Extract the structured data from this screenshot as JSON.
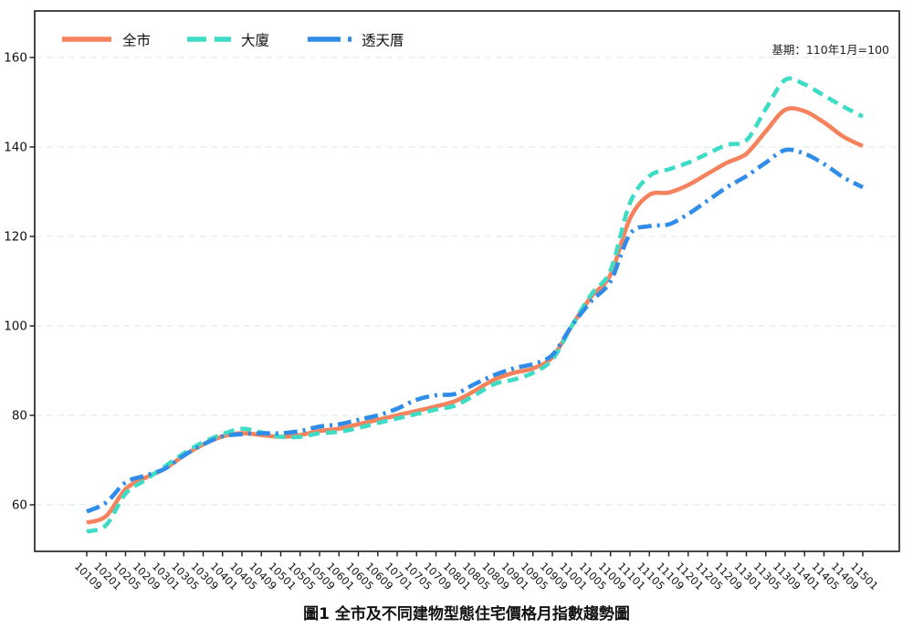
{
  "chart_data": {
    "type": "line",
    "title": "圖1 全市及不同建物型態住宅價格月指數趨勢圖",
    "note": "基期：110年1月=100",
    "xlabel": "",
    "ylabel": "",
    "yticks": [
      60,
      80,
      100,
      120,
      140,
      160
    ],
    "ylim": [
      49,
      171
    ],
    "grid": "horizontal-dashed",
    "legend_position": "top-left-inside",
    "categories": [
      "10109",
      "10201",
      "10205",
      "10209",
      "10301",
      "10305",
      "10309",
      "10401",
      "10405",
      "10409",
      "10501",
      "10505",
      "10509",
      "10601",
      "10605",
      "10609",
      "10701",
      "10705",
      "10709",
      "10801",
      "10805",
      "10809",
      "10901",
      "10905",
      "10909",
      "11001",
      "11005",
      "11009",
      "11101",
      "11105",
      "11109",
      "11201",
      "11205",
      "11209",
      "11301",
      "11305",
      "11309",
      "11401",
      "11405",
      "11409",
      "11501"
    ],
    "series": [
      {
        "name": "全市",
        "color": "#F5825C",
        "style": "solid",
        "values": [
          56,
          57.5,
          63.5,
          66,
          68,
          71,
          73.5,
          75.3,
          76,
          75.6,
          75.2,
          75.6,
          76.5,
          77,
          78,
          79,
          80,
          81,
          82,
          83.2,
          85.5,
          88,
          89.5,
          90.5,
          93,
          100,
          106.5,
          111.5,
          124,
          129.3,
          129.8,
          131.5,
          134,
          136.5,
          138.5,
          143.5,
          148.3,
          148,
          145.5,
          142.3,
          140.2
        ]
      },
      {
        "name": "大廈",
        "color": "#3EDCC5",
        "style": "dashed",
        "values": [
          54,
          55.5,
          62.5,
          65.5,
          68.5,
          71.5,
          74,
          75.8,
          77,
          76.2,
          75.2,
          75.2,
          76,
          76.3,
          77.2,
          78.3,
          79.3,
          80.3,
          81.3,
          82.2,
          84.5,
          87,
          88,
          89.5,
          92.5,
          100,
          107,
          112.5,
          127.5,
          133.5,
          135,
          136.5,
          138.5,
          140.5,
          141.5,
          148.5,
          155,
          154,
          151.5,
          149,
          146.8
        ]
      },
      {
        "name": "透天厝",
        "color": "#2F8CE8",
        "style": "dash-dot",
        "values": [
          58.5,
          60.5,
          65,
          66.5,
          68,
          71,
          73.5,
          75.3,
          75.8,
          76,
          76,
          76.5,
          77.5,
          78,
          79,
          80,
          81.5,
          83.5,
          84.5,
          84.8,
          87,
          89,
          90.5,
          91.5,
          93.5,
          100,
          105.5,
          110,
          120.5,
          122.3,
          122.7,
          125,
          128,
          131,
          133.5,
          136.5,
          139.3,
          138.5,
          136.2,
          133.2,
          131
        ]
      }
    ],
    "frame_color": "#1a1a1a",
    "grid_color": "#dbe7e5",
    "text_color": "#111111"
  }
}
